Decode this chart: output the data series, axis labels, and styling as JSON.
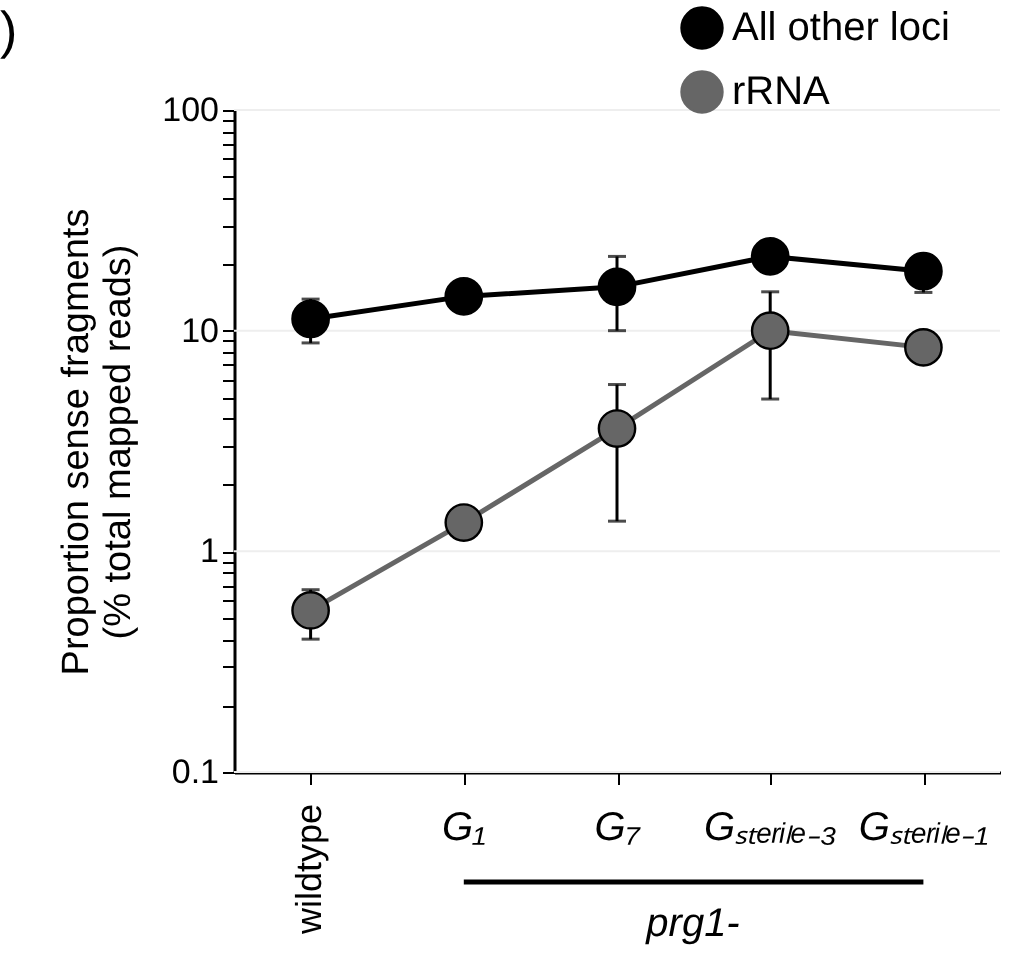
{
  "chart_data": {
    "type": "line",
    "ylabel": "Proportion sense fragments\n(% total mapped reads)",
    "categories": [
      "wildtype",
      "G₁",
      "G₇",
      "Gₛₜₑᵣᵢₗₑ₋₃",
      "Gₛₜₑᵣᵢₗₑ₋₁"
    ],
    "series": [
      {
        "name": "All other loci",
        "color": "#000000",
        "values": [
          11.3,
          14.3,
          15.8,
          21.7,
          18.6
        ],
        "errors": [
          [
            8.8,
            13.9
          ],
          null,
          [
            10,
            21.7
          ],
          null,
          [
            14.9,
            18.6
          ]
        ]
      },
      {
        "name": "rRNA",
        "color": "#666666",
        "values": [
          0.54,
          1.35,
          3.6,
          10,
          8.4
        ],
        "errors": [
          [
            0.4,
            0.67
          ],
          null,
          [
            1.37,
            5.7
          ],
          [
            4.9,
            15
          ],
          null
        ]
      }
    ],
    "log": true,
    "ylim": [
      0.1,
      100
    ],
    "yticks": [
      0.1,
      {
        "value": 0.2,
        "label": null
      },
      {
        "value": 0.3,
        "label": null
      },
      {
        "value": 0.4,
        "label": null
      },
      {
        "value": 0.5,
        "label": null
      },
      {
        "value": 0.6,
        "label": null
      },
      {
        "value": 0.7,
        "label": null
      },
      {
        "value": 0.8,
        "label": null
      },
      {
        "value": 0.9,
        "label": null
      },
      1,
      {
        "value": 2,
        "label": null
      },
      {
        "value": 3,
        "label": null
      },
      {
        "value": 4,
        "label": null
      },
      {
        "value": 5,
        "label": null
      },
      {
        "value": 6,
        "label": null
      },
      {
        "value": 7,
        "label": null
      },
      {
        "value": 8,
        "label": null
      },
      {
        "value": 9,
        "label": null
      },
      10,
      {
        "value": 20,
        "label": null
      },
      {
        "value": 30,
        "label": null
      },
      {
        "value": 40,
        "label": null
      },
      {
        "value": 50,
        "label": null
      },
      {
        "value": 60,
        "label": null
      },
      {
        "value": 70,
        "label": null
      },
      {
        "value": 80,
        "label": null
      },
      {
        "value": 90,
        "label": null
      },
      100
    ],
    "grid": "y",
    "legend": "top right",
    "marker": "circle",
    "line_style": "solid",
    "annotations": [
      ")",
      "prg1-"
    ]
  }
}
